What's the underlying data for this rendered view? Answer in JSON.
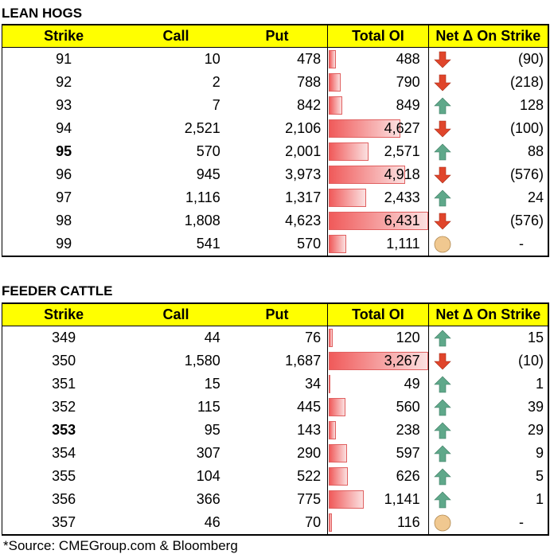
{
  "tables": [
    {
      "title": "LEAN HOGS",
      "headers": [
        "Strike",
        "Call",
        "Put",
        "Total OI",
        "Net Δ On Strike"
      ],
      "rows": [
        {
          "strike": "91",
          "call": "10",
          "put": "478",
          "total": "488",
          "total_num": 488,
          "dir": "down",
          "net": "(90)"
        },
        {
          "strike": "92",
          "call": "2",
          "put": "788",
          "total": "790",
          "total_num": 790,
          "dir": "down",
          "net": "(218)"
        },
        {
          "strike": "93",
          "call": "7",
          "put": "842",
          "total": "849",
          "total_num": 849,
          "dir": "up",
          "net": "128"
        },
        {
          "strike": "94",
          "call": "2,521",
          "put": "2,106",
          "total": "4,627",
          "total_num": 4627,
          "dir": "down",
          "net": "(100)"
        },
        {
          "strike": "95",
          "call": "570",
          "put": "2,001",
          "total": "2,571",
          "total_num": 2571,
          "dir": "up",
          "net": "88",
          "bold": true
        },
        {
          "strike": "96",
          "call": "945",
          "put": "3,973",
          "total": "4,918",
          "total_num": 4918,
          "dir": "down",
          "net": "(576)"
        },
        {
          "strike": "97",
          "call": "1,116",
          "put": "1,317",
          "total": "2,433",
          "total_num": 2433,
          "dir": "up",
          "net": "24"
        },
        {
          "strike": "98",
          "call": "1,808",
          "put": "4,623",
          "total": "6,431",
          "total_num": 6431,
          "dir": "down",
          "net": "(576)"
        },
        {
          "strike": "99",
          "call": "541",
          "put": "570",
          "total": "1,111",
          "total_num": 1111,
          "dir": "neutral",
          "net": "-"
        }
      ]
    },
    {
      "title": "FEEDER CATTLE",
      "headers": [
        "Strike",
        "Call",
        "Put",
        "Total OI",
        "Net Δ On Strike"
      ],
      "rows": [
        {
          "strike": "349",
          "call": "44",
          "put": "76",
          "total": "120",
          "total_num": 120,
          "dir": "up",
          "net": "15"
        },
        {
          "strike": "350",
          "call": "1,580",
          "put": "1,687",
          "total": "3,267",
          "total_num": 3267,
          "dir": "down",
          "net": "(10)"
        },
        {
          "strike": "351",
          "call": "15",
          "put": "34",
          "total": "49",
          "total_num": 49,
          "dir": "up",
          "net": "1"
        },
        {
          "strike": "352",
          "call": "115",
          "put": "445",
          "total": "560",
          "total_num": 560,
          "dir": "up",
          "net": "39"
        },
        {
          "strike": "353",
          "call": "95",
          "put": "143",
          "total": "238",
          "total_num": 238,
          "dir": "up",
          "net": "29",
          "bold": true
        },
        {
          "strike": "354",
          "call": "307",
          "put": "290",
          "total": "597",
          "total_num": 597,
          "dir": "up",
          "net": "9"
        },
        {
          "strike": "355",
          "call": "104",
          "put": "522",
          "total": "626",
          "total_num": 626,
          "dir": "up",
          "net": "5"
        },
        {
          "strike": "356",
          "call": "366",
          "put": "775",
          "total": "1,141",
          "total_num": 1141,
          "dir": "up",
          "net": "1"
        },
        {
          "strike": "357",
          "call": "46",
          "put": "70",
          "total": "116",
          "total_num": 116,
          "dir": "neutral",
          "net": "-"
        }
      ]
    }
  ],
  "colors": {
    "header_bg": "#ffff00",
    "bar": "#f05a5a",
    "up_arrow": "#5fa88a",
    "down_arrow": "#e0452b",
    "neutral": "#f0c890"
  },
  "icons": {
    "up": "arrow-up-icon",
    "down": "arrow-down-icon",
    "neutral": "circle-icon"
  },
  "footnote": "*Source: CMEGroup.com & Bloomberg"
}
